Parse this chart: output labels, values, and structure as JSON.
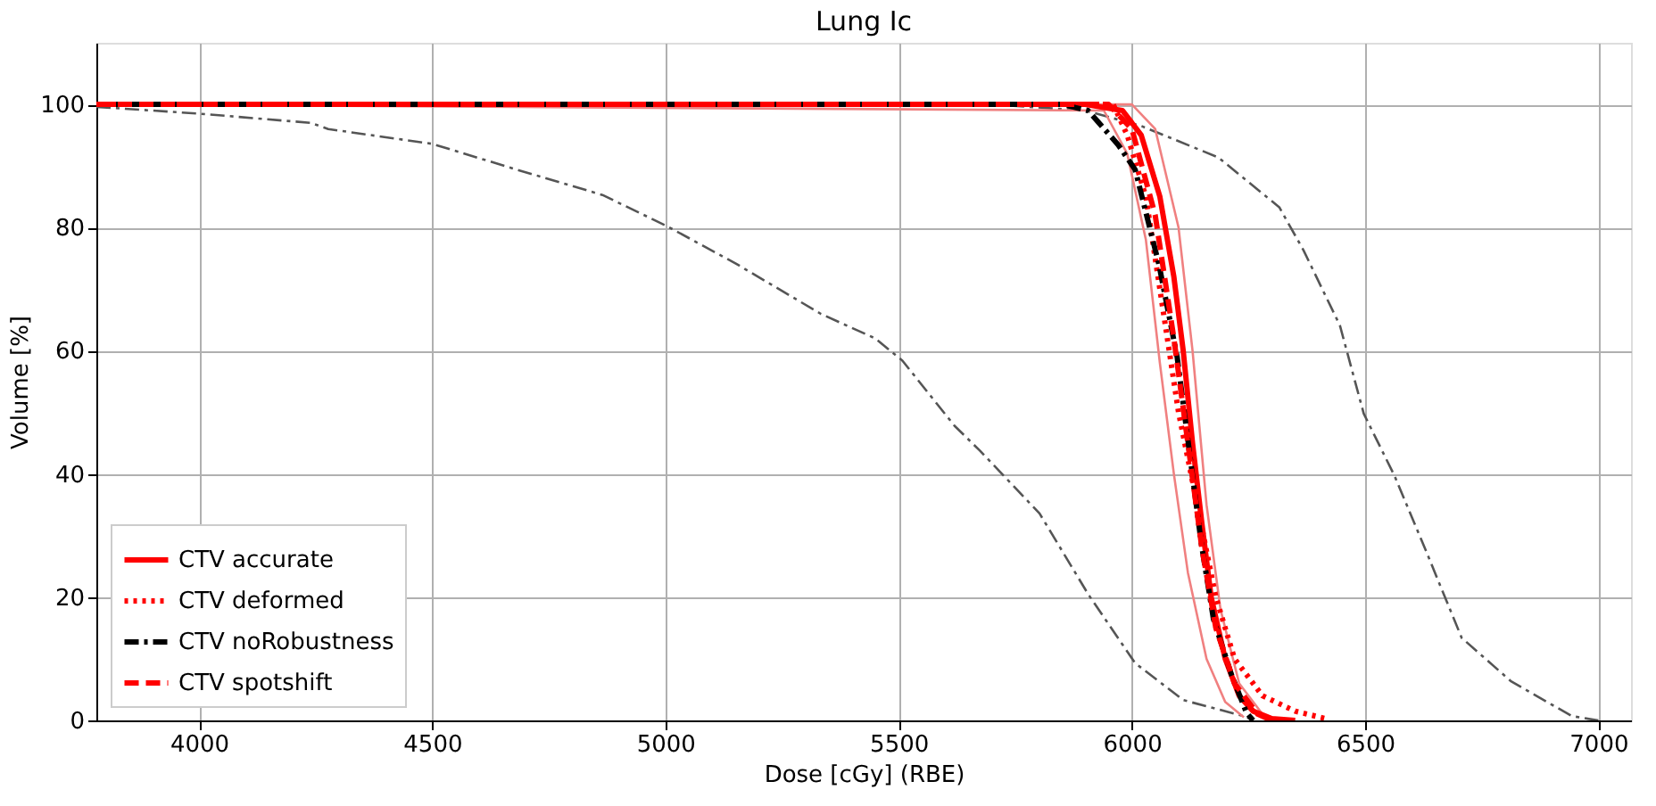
{
  "chart_data": {
    "type": "line",
    "title": "Lung Ic",
    "xlabel": "Dose [cGy] (RBE)",
    "ylabel": "Volume [%]",
    "xlim": [
      3780,
      7070
    ],
    "ylim": [
      0,
      110
    ],
    "xticks": [
      4000,
      4500,
      5000,
      5500,
      6000,
      6500,
      7000
    ],
    "yticks": [
      0,
      20,
      40,
      60,
      80,
      100
    ],
    "grid": true,
    "legend": "bottom left",
    "marker": "none",
    "series": [
      {
        "color": "#555555",
        "line_style": "dashdot",
        "x": [
          3780,
          4000,
          4240,
          4277,
          4500,
          4682,
          4865,
          5004,
          5150,
          5333,
          5450,
          5508,
          5620,
          5674,
          5802,
          5907,
          6007,
          6110,
          6240,
          6260
        ],
        "values": [
          99.6,
          98.5,
          97,
          96,
          93.6,
          89.4,
          85.3,
          80.2,
          74.2,
          66,
          62,
          58.4,
          47.8,
          43.8,
          33.6,
          20.4,
          9.3,
          3.3,
          0.7,
          0
        ]
      },
      {
        "color": "#555555",
        "line_style": "dashdot",
        "x": [
          3780,
          5700,
          5900,
          6020,
          6185,
          6316,
          6368,
          6446,
          6497,
          6563,
          6630,
          6707,
          6812,
          6943,
          7000
        ],
        "values": [
          100,
          100,
          99,
          96.5,
          91.4,
          83.3,
          76.3,
          64.1,
          49.8,
          39.7,
          27.6,
          13.4,
          6.4,
          0.7,
          0
        ]
      },
      {
        "color": "#f08080",
        "line_style": "solid",
        "x": [
          3780,
          6000,
          6050,
          6100,
          6130,
          6160,
          6190,
          6230,
          6280,
          6320
        ],
        "values": [
          100,
          100,
          96,
          80,
          60,
          35,
          18,
          6,
          1,
          0
        ]
      },
      {
        "color": "#f08080",
        "line_style": "solid",
        "x": [
          3780,
          5940,
          5990,
          6030,
          6060,
          6090,
          6120,
          6160,
          6200,
          6240
        ],
        "values": [
          100,
          99,
          92,
          78,
          58,
          40,
          24,
          10,
          3,
          0.5
        ]
      },
      {
        "name": "CTV accurate",
        "color": "#ff0000",
        "line_style": "solid",
        "x": [
          3780,
          5900,
          5980,
          6020,
          6060,
          6090,
          6110,
          6130,
          6150,
          6170,
          6200,
          6230,
          6260,
          6300,
          6350
        ],
        "values": [
          100,
          100,
          99,
          95,
          85,
          72,
          60,
          45,
          32,
          20,
          10,
          4,
          1.5,
          0.3,
          0
        ]
      },
      {
        "name": "CTV deformed",
        "color": "#ff0000",
        "line_style": "dotted",
        "x": [
          3780,
          5960,
          5990,
          6030,
          6070,
          6100,
          6140,
          6180,
          6220,
          6280,
          6350,
          6420
        ],
        "values": [
          100,
          100,
          95,
          85,
          65,
          50,
          35,
          20,
          10,
          4,
          1.5,
          0.2
        ]
      },
      {
        "name": "CTV noRobustness",
        "color": "#000000",
        "line_style": "dashdot",
        "x": [
          3780,
          5850,
          5906,
          5971,
          6007,
          6058,
          6097,
          6123,
          6149,
          6175,
          6214,
          6246,
          6260
        ],
        "values": [
          100,
          100,
          99,
          93.4,
          89.4,
          74,
          59,
          43.8,
          28.6,
          16.4,
          7.3,
          1.2,
          0
        ]
      },
      {
        "name": "CTV spotshift",
        "color": "#ff0000",
        "line_style": "dashed",
        "x": [
          3780,
          5950,
          6000,
          6050,
          6090,
          6120,
          6150,
          6180,
          6220,
          6270,
          6300
        ],
        "values": [
          100,
          100,
          96,
          82,
          62,
          45,
          28,
          15,
          6,
          1,
          0
        ]
      }
    ]
  }
}
